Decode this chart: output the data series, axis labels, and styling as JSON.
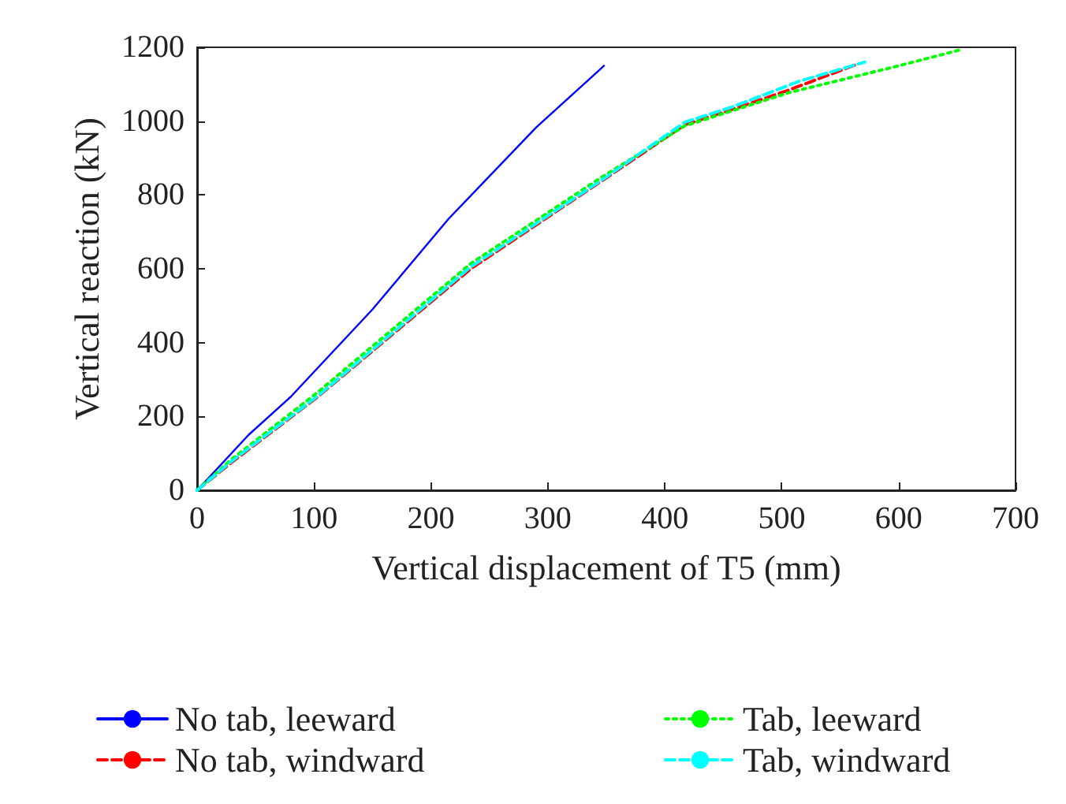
{
  "chart_data": {
    "type": "line",
    "xlabel": "Vertical displacement of T5 (mm)",
    "ylabel": "Vertical reaction (kN)",
    "xlim": [
      0,
      700
    ],
    "xticks": [
      0,
      100,
      200,
      300,
      400,
      500,
      600,
      700
    ],
    "ylim": [
      0,
      1200
    ],
    "yticks": [
      0,
      200,
      400,
      600,
      800,
      1000,
      1200
    ],
    "grid": false,
    "legend": "bottom",
    "marker": "none",
    "series": [
      {
        "name": "No tab, leeward",
        "color": "#0000ff",
        "line_style": "solid",
        "x": [
          0,
          44,
          80,
          150,
          215,
          290,
          348
        ],
        "values": [
          0,
          150,
          253,
          490,
          735,
          983,
          1150
        ]
      },
      {
        "name": "No tab, windward",
        "color": "#ff0000",
        "line_style": "dashed",
        "x": [
          0,
          28,
          103,
          234,
          346,
          417,
          459,
          506,
          566
        ],
        "values": [
          0,
          72,
          253,
          600,
          838,
          990,
          1033,
          1084,
          1156
        ]
      },
      {
        "name": "Tab, leeward",
        "color": "#00ff00",
        "line_style": "dotted",
        "x": [
          0,
          28,
          103,
          234,
          346,
          417,
          506,
          599,
          655
        ],
        "values": [
          0,
          80,
          265,
          614,
          848,
          987,
          1077,
          1149,
          1195
        ]
      },
      {
        "name": "Tab, windward",
        "color": "#00ffff",
        "line_style": "dashed",
        "x": [
          0,
          28,
          103,
          234,
          346,
          417,
          459,
          515,
          571
        ],
        "values": [
          0,
          75,
          255,
          605,
          840,
          997,
          1040,
          1108,
          1160
        ]
      }
    ]
  }
}
